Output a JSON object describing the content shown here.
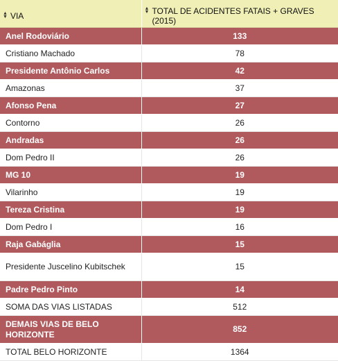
{
  "table": {
    "headers": [
      {
        "label": "VIA"
      },
      {
        "label": "TOTAL DE ACIDENTES FATAIS + GRAVES (2015)"
      }
    ],
    "highlight_color": "#b05a5e",
    "header_color": "#efefb6"
  },
  "chart_data": {
    "type": "table",
    "columns": [
      "VIA",
      "TOTAL DE ACIDENTES FATAIS + GRAVES (2015)"
    ],
    "rows": [
      {
        "via": "Anel Rodoviário",
        "total": "133",
        "highlight": true
      },
      {
        "via": "Cristiano Machado",
        "total": "78",
        "highlight": false
      },
      {
        "via": "Presidente Antônio Carlos",
        "total": "42",
        "highlight": true
      },
      {
        "via": "Amazonas",
        "total": "37",
        "highlight": false
      },
      {
        "via": "Afonso Pena",
        "total": "27",
        "highlight": true
      },
      {
        "via": "Contorno",
        "total": "26",
        "highlight": false
      },
      {
        "via": "Andradas",
        "total": "26",
        "highlight": true
      },
      {
        "via": "Dom Pedro II",
        "total": "26",
        "highlight": false
      },
      {
        "via": "MG 10",
        "total": "19",
        "highlight": true
      },
      {
        "via": "Vilarinho",
        "total": "19",
        "highlight": false
      },
      {
        "via": "Tereza Cristina",
        "total": "19",
        "highlight": true
      },
      {
        "via": "Dom Pedro I",
        "total": "16",
        "highlight": false
      },
      {
        "via": "Raja Gabáglia",
        "total": "15",
        "highlight": true
      },
      {
        "via": "Presidente Juscelino Kubitschek",
        "total": "15",
        "highlight": false
      },
      {
        "via": "Padre Pedro Pinto",
        "total": "14",
        "highlight": true
      },
      {
        "via": "SOMA DAS VIAS LISTADAS",
        "total": "512",
        "highlight": false
      },
      {
        "via": "DEMAIS VIAS DE BELO HORIZONTE",
        "total": "852",
        "highlight": true
      },
      {
        "via": "TOTAL BELO HORIZONTE",
        "total": "1364",
        "highlight": false
      }
    ]
  }
}
